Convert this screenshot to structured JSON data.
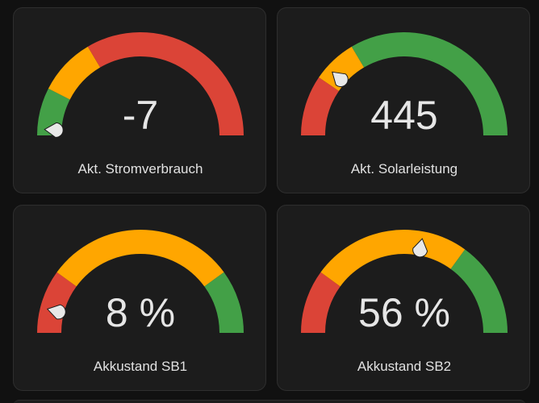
{
  "colors": {
    "green": "#43a047",
    "yellow": "#ffa600",
    "red": "#db4437",
    "needle": "#e8e8e8",
    "card_bg": "#1c1c1c",
    "page_bg": "#111111"
  },
  "gauges": [
    {
      "value_text": "-7",
      "label": "Akt. Stromverbrauch",
      "needle_fraction": 0.02,
      "segments": [
        {
          "from": 0.0,
          "to": 0.15,
          "color": "#43a047"
        },
        {
          "from": 0.15,
          "to": 0.33,
          "color": "#ffa600"
        },
        {
          "from": 0.33,
          "to": 1.0,
          "color": "#db4437"
        }
      ]
    },
    {
      "value_text": "445",
      "label": "Akt. Solarleistung",
      "needle_fraction": 0.23,
      "segments": [
        {
          "from": 0.0,
          "to": 0.19,
          "color": "#db4437"
        },
        {
          "from": 0.19,
          "to": 0.33,
          "color": "#ffa600"
        },
        {
          "from": 0.33,
          "to": 1.0,
          "color": "#43a047"
        }
      ]
    },
    {
      "value_text": "8 %",
      "label": "Akkustand SB1",
      "needle_fraction": 0.08,
      "segments": [
        {
          "from": 0.0,
          "to": 0.2,
          "color": "#db4437"
        },
        {
          "from": 0.2,
          "to": 0.8,
          "color": "#ffa600"
        },
        {
          "from": 0.8,
          "to": 1.0,
          "color": "#43a047"
        }
      ]
    },
    {
      "value_text": "56 %",
      "label": "Akkustand SB2",
      "needle_fraction": 0.56,
      "segments": [
        {
          "from": 0.0,
          "to": 0.2,
          "color": "#db4437"
        },
        {
          "from": 0.2,
          "to": 0.7,
          "color": "#ffa600"
        },
        {
          "from": 0.7,
          "to": 1.0,
          "color": "#43a047"
        }
      ]
    }
  ]
}
